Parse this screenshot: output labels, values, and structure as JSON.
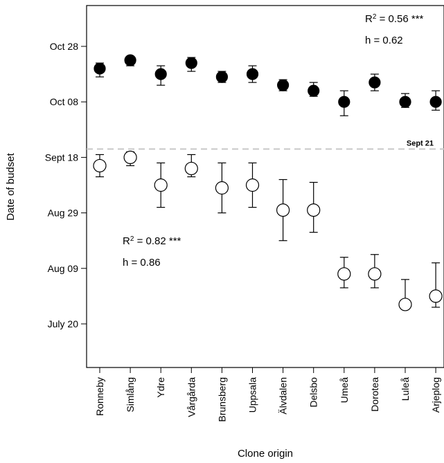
{
  "chart_data": {
    "type": "scatter",
    "xlabel": "Clone origin",
    "ylabel": "Date of budset",
    "categories": [
      "Ronneby",
      "Simlång",
      "Ydre",
      "Vårgårda",
      "Brunsberg",
      "Uppsala",
      "Älvdalen",
      "Delsbo",
      "Umeå",
      "Dorotea",
      "Luleå",
      "Arjeplog"
    ],
    "y_ticks": [
      {
        "label": "Oct 28",
        "value": "2000-10-28"
      },
      {
        "label": "Oct 08",
        "value": "2000-10-08"
      },
      {
        "label": "Sept 18",
        "value": "2000-09-18"
      },
      {
        "label": "Aug 29",
        "value": "2000-08-29"
      },
      {
        "label": "Aug 09",
        "value": "2000-08-09"
      },
      {
        "label": "July 20",
        "value": "2000-07-20"
      }
    ],
    "ylim": [
      "2000-07-03",
      "2000-11-13"
    ],
    "reference_line": {
      "label": "Sept 21",
      "value": "2000-09-21",
      "color": "#c8c8c8",
      "style": "dashed"
    },
    "series": [
      {
        "marker": "filled",
        "color": "#000000",
        "y": [
          "2000-10-20",
          "2000-10-23",
          "2000-10-18",
          "2000-10-22",
          "2000-10-17",
          "2000-10-18",
          "2000-10-14",
          "2000-10-12",
          "2000-10-08",
          "2000-10-15",
          "2000-10-08",
          "2000-10-08"
        ],
        "ylow": [
          "2000-10-17",
          "2000-10-21",
          "2000-10-14",
          "2000-10-19",
          "2000-10-15",
          "2000-10-15",
          "2000-10-12",
          "2000-10-10",
          "2000-10-03",
          "2000-10-12",
          "2000-10-06",
          "2000-10-05"
        ],
        "yhigh": [
          "2000-10-22",
          "2000-10-24",
          "2000-10-21",
          "2000-10-24",
          "2000-10-19",
          "2000-10-21",
          "2000-10-16",
          "2000-10-15",
          "2000-10-12",
          "2000-10-18",
          "2000-10-11",
          "2000-10-12"
        ],
        "annotation": {
          "r2": "0.56",
          "sig": "***",
          "h": "h = 0.62"
        }
      },
      {
        "marker": "open",
        "color": "#000000",
        "y": [
          "2000-09-15",
          "2000-09-18",
          "2000-09-08",
          "2000-09-14",
          "2000-09-07",
          "2000-09-08",
          "2000-08-30",
          "2000-08-30",
          "2000-08-07",
          "2000-08-07",
          "2000-07-27",
          "2000-07-30"
        ],
        "ylow": [
          "2000-09-11",
          "2000-09-15",
          "2000-08-31",
          "2000-09-11",
          "2000-08-29",
          "2000-08-31",
          "2000-08-19",
          "2000-08-22",
          "2000-08-02",
          "2000-08-02",
          "2000-07-26",
          "2000-07-26"
        ],
        "yhigh": [
          "2000-09-19",
          "2000-09-20",
          "2000-09-16",
          "2000-09-19",
          "2000-09-16",
          "2000-09-16",
          "2000-09-10",
          "2000-09-09",
          "2000-08-13",
          "2000-08-14",
          "2000-08-05",
          "2000-08-11"
        ],
        "annotation": {
          "r2": "0.82",
          "sig": "***",
          "h": "h = 0.86"
        }
      }
    ]
  }
}
